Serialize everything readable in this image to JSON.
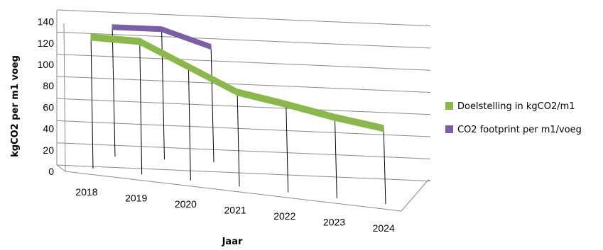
{
  "chart_data": {
    "type": "line",
    "style": "3d",
    "categories": [
      "2018",
      "2019",
      "2020",
      "2021",
      "2022",
      "2023",
      "2024"
    ],
    "xlabel": "Jaar",
    "ylabel": "kgCO2 per m1 voeg",
    "ylim": [
      0,
      140
    ],
    "yticks": [
      0,
      20,
      40,
      60,
      80,
      100,
      120,
      140
    ],
    "grid": true,
    "legend_position": "right",
    "series": [
      {
        "name": "Doelstelling in kgCO2/m1",
        "color": "#8ab84a",
        "values": [
          126,
          124,
          103,
          82,
          73,
          63,
          55
        ]
      },
      {
        "name": "CO2 footprint per m1/voeg",
        "color": "#7b5ea7",
        "values": [
          134,
          134,
          120,
          null,
          null,
          null,
          null
        ]
      }
    ]
  }
}
